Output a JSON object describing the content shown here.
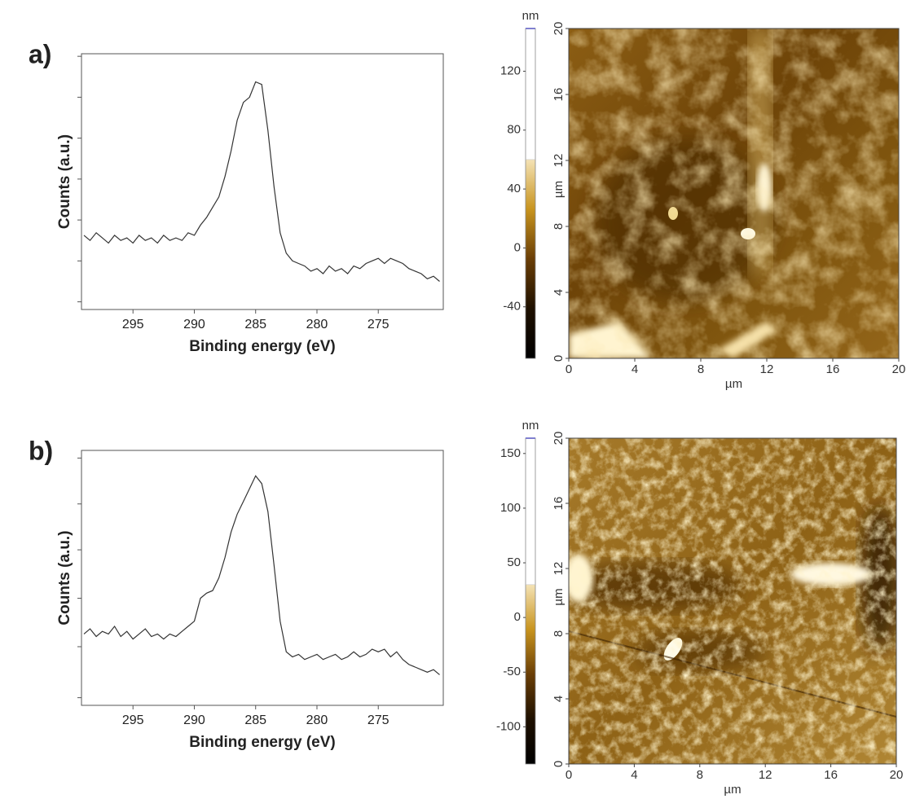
{
  "chart_data": [
    {
      "type": "line",
      "panel_label": "a)",
      "xlabel": "Binding energy (eV)",
      "ylabel": "Counts (a.u.)",
      "color": "#333333",
      "xlim": [
        299.2,
        269.7
      ],
      "xticks": [
        295,
        290,
        285,
        280,
        275
      ],
      "ylim": [
        0,
        100
      ],
      "yticks": [
        3,
        19,
        35,
        51,
        67,
        83,
        99
      ],
      "x": [
        299,
        298.5,
        298,
        297.5,
        297,
        296.5,
        296,
        295.5,
        295,
        294.5,
        294,
        293.5,
        293,
        292.5,
        292,
        291.5,
        291,
        290.5,
        290,
        289.5,
        289,
        288.5,
        288,
        287.5,
        287,
        286.5,
        286,
        285.5,
        285,
        284.5,
        284,
        283.5,
        283,
        282.5,
        282,
        281.5,
        281,
        280.5,
        280,
        279.5,
        279,
        278.5,
        278,
        277.5,
        277,
        276.5,
        276,
        275.5,
        275,
        274.5,
        274,
        273.5,
        273,
        272.5,
        272,
        271.5,
        271,
        270.5,
        270
      ],
      "values": [
        29,
        27,
        30,
        28,
        26,
        29,
        27,
        28,
        26,
        29,
        27,
        28,
        26,
        29,
        27,
        28,
        27,
        30,
        29,
        33,
        36,
        40,
        44,
        52,
        62,
        74,
        81,
        83,
        89,
        88,
        70,
        48,
        30,
        22,
        19,
        18,
        17,
        15,
        16,
        14,
        17,
        15,
        16,
        14,
        17,
        16,
        18,
        19,
        20,
        18,
        20,
        19,
        18,
        16,
        15,
        14,
        12,
        13,
        11
      ]
    },
    {
      "type": "image",
      "xlabel": "µm",
      "ylabel": "µm",
      "xlim": [
        0,
        20
      ],
      "xticks": [
        0,
        4,
        8,
        12,
        16,
        20
      ],
      "ylim": [
        0,
        20
      ],
      "yticks": [
        0,
        4,
        8,
        12,
        16,
        20
      ],
      "colorbar": {
        "label": "nm",
        "lim": [
          -75,
          149
        ],
        "ticks": [
          -40,
          0,
          40,
          80,
          120
        ],
        "saturation": 60
      }
    },
    {
      "type": "line",
      "panel_label": "b)",
      "xlabel": "Binding energy (eV)",
      "ylabel": "Counts (a.u.)",
      "color": "#333333",
      "xlim": [
        299.2,
        269.7
      ],
      "xticks": [
        295,
        290,
        285,
        280,
        275
      ],
      "ylim": [
        0,
        100
      ],
      "yticks": [
        3,
        23,
        42,
        61,
        79,
        97
      ],
      "x": [
        299,
        298.5,
        298,
        297.5,
        297,
        296.5,
        296,
        295.5,
        295,
        294.5,
        294,
        293.5,
        293,
        292.5,
        292,
        291.5,
        291,
        290.5,
        290,
        289.5,
        289,
        288.5,
        288,
        287.5,
        287,
        286.5,
        286,
        285.5,
        285,
        284.5,
        284,
        283.5,
        283,
        282.5,
        282,
        281.5,
        281,
        280.5,
        280,
        279.5,
        279,
        278.5,
        278,
        277.5,
        277,
        276.5,
        276,
        275.5,
        275,
        274.5,
        274,
        273.5,
        273,
        272.5,
        272,
        271.5,
        271,
        270.5,
        270
      ],
      "values": [
        28,
        30,
        27,
        29,
        28,
        31,
        27,
        29,
        26,
        28,
        30,
        27,
        28,
        26,
        28,
        27,
        29,
        31,
        33,
        42,
        44,
        45,
        50,
        58,
        68,
        75,
        80,
        85,
        90,
        87,
        76,
        55,
        33,
        21,
        19,
        20,
        18,
        19,
        20,
        18,
        19,
        20,
        18,
        19,
        21,
        19,
        20,
        22,
        21,
        22,
        19,
        21,
        18,
        16,
        15,
        14,
        13,
        14,
        12
      ]
    },
    {
      "type": "image",
      "xlabel": "µm",
      "ylabel": "µm",
      "xlim": [
        0,
        20
      ],
      "xticks": [
        0,
        4,
        8,
        12,
        16,
        20
      ],
      "ylim": [
        0,
        20
      ],
      "yticks": [
        0,
        4,
        8,
        12,
        16,
        20
      ],
      "colorbar": {
        "label": "nm",
        "lim": [
          -134,
          164
        ],
        "ticks": [
          -100,
          -50,
          0,
          50,
          100,
          150
        ],
        "saturation": 30
      }
    }
  ]
}
